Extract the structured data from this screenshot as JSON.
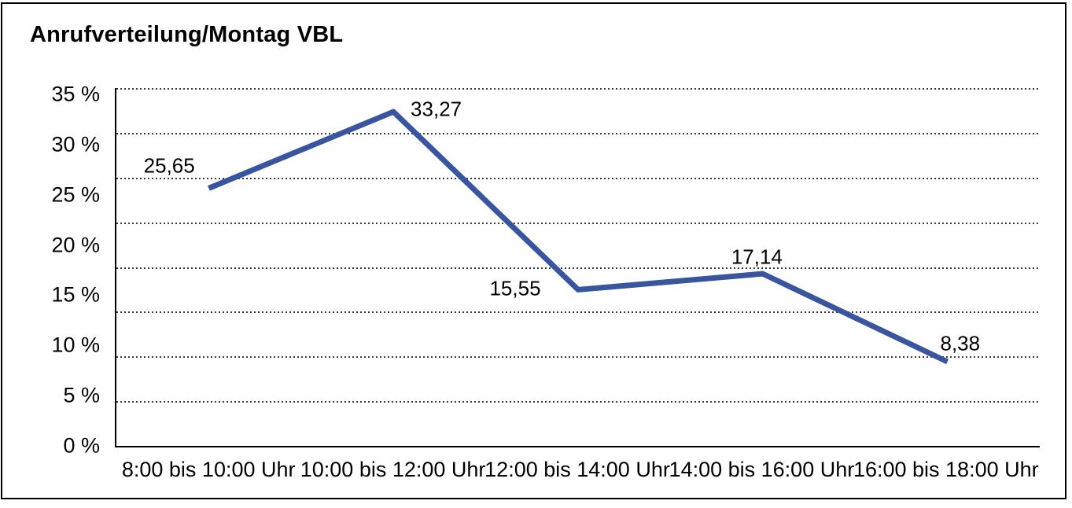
{
  "chart_data": {
    "type": "line",
    "title": "Anrufverteilung/Montag VBL",
    "categories": [
      "8:00 bis 10:00 Uhr",
      "10:00 bis 12:00 Uhr",
      "12:00 bis 14:00 Uhr",
      "14:00 bis 16:00 Uhr",
      "16:00 bis 18:00 Uhr"
    ],
    "values": [
      25.65,
      33.27,
      15.55,
      17.14,
      8.38
    ],
    "point_labels": [
      "25,65",
      "33,27",
      "15,55",
      "17,14",
      "8,38"
    ],
    "xlabel": "",
    "ylabel": "",
    "ylim": [
      0,
      35
    ],
    "y_tick_values": [
      35,
      30,
      25,
      20,
      15,
      10,
      5,
      0
    ],
    "y_tick_labels": [
      "35 %",
      "30 %",
      "25 %",
      "20 %",
      "15 %",
      "10 %",
      "5 %",
      "0 %"
    ],
    "grid": "horizontal-dotted",
    "legend_position": "none",
    "line_color": "#3A55A0",
    "axis_color": "#000000",
    "decimal_separator": ","
  }
}
